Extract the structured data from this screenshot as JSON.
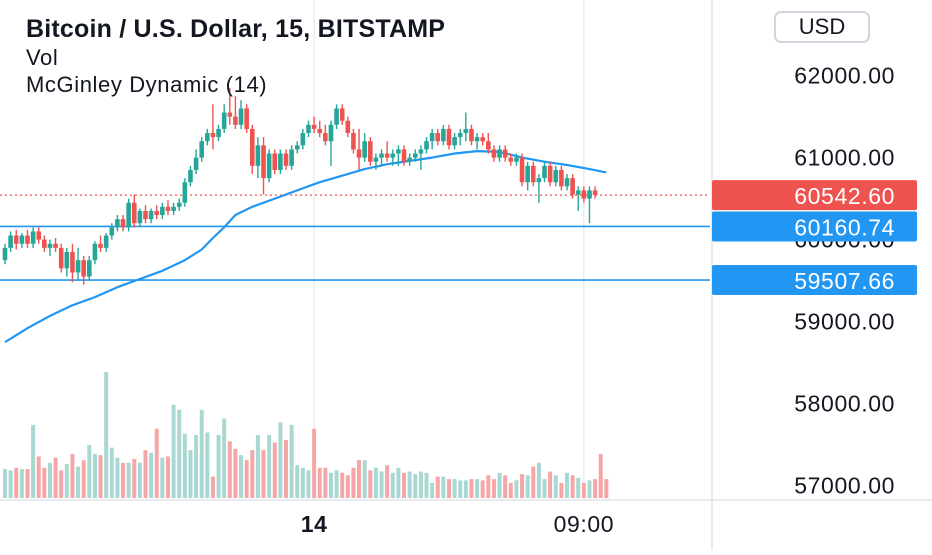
{
  "header": {
    "title": "Bitcoin / U.S. Dollar, 15, BITSTAMP",
    "indicator_vol": "Vol",
    "indicator_mcginley": "McGinley Dynamic (14)",
    "currency_button": "USD"
  },
  "colors": {
    "up": "#26a69a",
    "down": "#ef5350",
    "vol_up": "#a9d7d2",
    "vol_down": "#f4a7a6",
    "mcginley": "#2196f3",
    "hline": "#2196f3",
    "last_price_line": "#ef5350",
    "axis_text": "#131722",
    "grid": "#e0e3eb"
  },
  "chart_data": {
    "type": "candlestick",
    "symbol": "Bitcoin / U.S. Dollar",
    "interval": "15",
    "exchange": "BITSTAMP",
    "y_axis": {
      "ticks": [
        {
          "value": 62000,
          "label": "62000.00"
        },
        {
          "value": 61000,
          "label": "61000.00"
        },
        {
          "value": 60000,
          "label": "60000.00"
        },
        {
          "value": 59000,
          "label": "59000.00"
        },
        {
          "value": 58000,
          "label": "58000.00"
        },
        {
          "value": 57000,
          "label": "57000.00"
        }
      ],
      "range": [
        56850,
        62800
      ]
    },
    "x_axis": {
      "ticks": [
        {
          "index": 55,
          "label": "14"
        },
        {
          "index": 103,
          "label": "09:00"
        }
      ]
    },
    "last_price": {
      "value": 60542.6,
      "label": "60542.60"
    },
    "horizontal_lines": [
      {
        "value": 60160.74,
        "label": "60160.74"
      },
      {
        "value": 59507.66,
        "label": "59507.66"
      }
    ],
    "candles": [
      [
        59750,
        59950,
        59700,
        59900
      ],
      [
        59900,
        60100,
        59850,
        60050
      ],
      [
        60050,
        60120,
        59880,
        59950
      ],
      [
        59950,
        60080,
        59900,
        60050
      ],
      [
        60050,
        60120,
        59900,
        59950
      ],
      [
        59950,
        60150,
        59900,
        60100
      ],
      [
        60100,
        60150,
        59950,
        60000
      ],
      [
        60000,
        60050,
        59850,
        59900
      ],
      [
        59900,
        60000,
        59800,
        59950
      ],
      [
        59950,
        60020,
        59850,
        59900
      ],
      [
        59900,
        59950,
        59600,
        59650
      ],
      [
        59650,
        59900,
        59550,
        59850
      ],
      [
        59850,
        59950,
        59480,
        59600
      ],
      [
        59600,
        59900,
        59500,
        59750
      ],
      [
        59750,
        59800,
        59450,
        59550
      ],
      [
        59550,
        59800,
        59500,
        59750
      ],
      [
        59750,
        59980,
        59700,
        59950
      ],
      [
        59950,
        60050,
        59850,
        59900
      ],
      [
        59900,
        60080,
        59850,
        60050
      ],
      [
        60050,
        60200,
        60000,
        60150
      ],
      [
        60150,
        60300,
        60100,
        60250
      ],
      [
        60250,
        60300,
        60100,
        60150
      ],
      [
        60150,
        60500,
        60100,
        60450
      ],
      [
        60450,
        60550,
        60150,
        60200
      ],
      [
        60200,
        60380,
        60150,
        60350
      ],
      [
        60350,
        60420,
        60200,
        60250
      ],
      [
        60250,
        60380,
        60200,
        60350
      ],
      [
        60350,
        60420,
        60250,
        60300
      ],
      [
        60300,
        60450,
        60250,
        60400
      ],
      [
        60400,
        60480,
        60300,
        60350
      ],
      [
        60350,
        60450,
        60300,
        60400
      ],
      [
        60400,
        60500,
        60350,
        60450
      ],
      [
        60450,
        60750,
        60400,
        60700
      ],
      [
        60700,
        60900,
        60650,
        60850
      ],
      [
        60850,
        61100,
        60800,
        61000
      ],
      [
        61000,
        61250,
        60950,
        61200
      ],
      [
        61200,
        61350,
        61150,
        61300
      ],
      [
        61300,
        61650,
        61100,
        61250
      ],
      [
        61250,
        61400,
        61200,
        61350
      ],
      [
        61350,
        61650,
        61300,
        61550
      ],
      [
        61550,
        61850,
        61400,
        61500
      ],
      [
        61500,
        61750,
        61350,
        61400
      ],
      [
        61400,
        61700,
        61350,
        61600
      ],
      [
        61600,
        61650,
        61300,
        61350
      ],
      [
        61350,
        61400,
        60800,
        60900
      ],
      [
        60900,
        61250,
        60750,
        61150
      ],
      [
        61150,
        61250,
        60550,
        60750
      ],
      [
        60750,
        61100,
        60700,
        61050
      ],
      [
        61050,
        61100,
        60800,
        60850
      ],
      [
        60850,
        61100,
        60800,
        61050
      ],
      [
        61050,
        61100,
        60850,
        60900
      ],
      [
        60900,
        61150,
        60850,
        61100
      ],
      [
        61100,
        61200,
        61050,
        61150
      ],
      [
        61150,
        61350,
        61100,
        61300
      ],
      [
        61300,
        61450,
        61250,
        61400
      ],
      [
        61400,
        61500,
        61300,
        61350
      ],
      [
        61350,
        61450,
        61250,
        61300
      ],
      [
        61300,
        61400,
        61150,
        61200
      ],
      [
        61200,
        61450,
        60900,
        61400
      ],
      [
        61400,
        61650,
        61350,
        61600
      ],
      [
        61600,
        61650,
        61400,
        61450
      ],
      [
        61450,
        61500,
        61250,
        61300
      ],
      [
        61300,
        61350,
        61050,
        61100
      ],
      [
        61100,
        61350,
        60850,
        61000
      ],
      [
        61000,
        61300,
        60950,
        61200
      ],
      [
        61200,
        61250,
        60900,
        60950
      ],
      [
        60950,
        61050,
        60850,
        61000
      ],
      [
        61000,
        61100,
        60900,
        61050
      ],
      [
        61050,
        61200,
        60950,
        61000
      ],
      [
        61000,
        61100,
        60900,
        61050
      ],
      [
        61050,
        61150,
        60900,
        61100
      ],
      [
        61100,
        61150,
        60900,
        60950
      ],
      [
        60950,
        61050,
        60900,
        61000
      ],
      [
        61000,
        61100,
        60950,
        61050
      ],
      [
        61050,
        61150,
        60850,
        61100
      ],
      [
        61100,
        61250,
        61050,
        61200
      ],
      [
        61200,
        61350,
        61100,
        61300
      ],
      [
        61300,
        61350,
        61150,
        61200
      ],
      [
        61200,
        61400,
        61150,
        61350
      ],
      [
        61350,
        61400,
        61100,
        61150
      ],
      [
        61150,
        61300,
        61100,
        61250
      ],
      [
        61250,
        61350,
        61150,
        61300
      ],
      [
        61300,
        61550,
        61200,
        61350
      ],
      [
        61350,
        61400,
        61150,
        61200
      ],
      [
        61200,
        61300,
        61100,
        61250
      ],
      [
        61250,
        61300,
        61150,
        61200
      ],
      [
        61200,
        61300,
        61050,
        61100
      ],
      [
        61100,
        61150,
        60950,
        61000
      ],
      [
        61000,
        61150,
        60950,
        61100
      ],
      [
        61100,
        61150,
        60950,
        61000
      ],
      [
        61000,
        61050,
        60900,
        60950
      ],
      [
        60950,
        61050,
        60900,
        61000
      ],
      [
        61000,
        61050,
        60650,
        60700
      ],
      [
        60700,
        60950,
        60600,
        60900
      ],
      [
        60900,
        60950,
        60650,
        60700
      ],
      [
        60700,
        60800,
        60450,
        60750
      ],
      [
        60750,
        60950,
        60700,
        60900
      ],
      [
        60900,
        60950,
        60650,
        60700
      ],
      [
        60700,
        60900,
        60650,
        60850
      ],
      [
        60850,
        60900,
        60600,
        60650
      ],
      [
        60650,
        60800,
        60600,
        60750
      ],
      [
        60750,
        60800,
        60500,
        60550
      ],
      [
        60550,
        60650,
        60350,
        60600
      ],
      [
        60600,
        60650,
        60450,
        60500
      ],
      [
        60500,
        60650,
        60200,
        60600
      ],
      [
        60600,
        60650,
        60500,
        60542.6
      ]
    ],
    "volumes": [
      0.23,
      0.22,
      0.24,
      0.23,
      0.23,
      0.58,
      0.33,
      0.24,
      0.28,
      0.32,
      0.22,
      0.27,
      0.35,
      0.25,
      0.3,
      0.42,
      0.35,
      0.34,
      1.0,
      0.4,
      0.32,
      0.28,
      0.28,
      0.31,
      0.28,
      0.38,
      0.36,
      0.55,
      0.32,
      0.33,
      0.74,
      0.7,
      0.51,
      0.38,
      0.5,
      0.7,
      0.52,
      0.17,
      0.5,
      0.63,
      0.45,
      0.39,
      0.34,
      0.3,
      0.38,
      0.5,
      0.38,
      0.5,
      0.44,
      0.6,
      0.46,
      0.58,
      0.26,
      0.24,
      0.22,
      0.55,
      0.24,
      0.24,
      0.2,
      0.22,
      0.2,
      0.18,
      0.24,
      0.3,
      0.3,
      0.22,
      0.24,
      0.21,
      0.26,
      0.2,
      0.24,
      0.2,
      0.21,
      0.19,
      0.21,
      0.2,
      0.12,
      0.17,
      0.17,
      0.15,
      0.15,
      0.14,
      0.14,
      0.15,
      0.15,
      0.14,
      0.18,
      0.15,
      0.2,
      0.18,
      0.12,
      0.14,
      0.19,
      0.18,
      0.25,
      0.28,
      0.15,
      0.21,
      0.18,
      0.12,
      0.2,
      0.18,
      0.16,
      0.12,
      0.14,
      0.15,
      0.35,
      0.15
    ],
    "mcginley": [
      [
        0,
        58750
      ],
      [
        4,
        58920
      ],
      [
        8,
        59070
      ],
      [
        12,
        59200
      ],
      [
        16,
        59300
      ],
      [
        20,
        59420
      ],
      [
        24,
        59520
      ],
      [
        28,
        59620
      ],
      [
        32,
        59750
      ],
      [
        35,
        59880
      ],
      [
        37,
        60020
      ],
      [
        39,
        60150
      ],
      [
        41,
        60300
      ],
      [
        44,
        60400
      ],
      [
        48,
        60500
      ],
      [
        52,
        60600
      ],
      [
        56,
        60700
      ],
      [
        60,
        60780
      ],
      [
        64,
        60860
      ],
      [
        68,
        60920
      ],
      [
        72,
        60960
      ],
      [
        76,
        61000
      ],
      [
        80,
        61050
      ],
      [
        84,
        61080
      ],
      [
        88,
        61070
      ],
      [
        92,
        61000
      ],
      [
        96,
        60950
      ],
      [
        100,
        60910
      ],
      [
        104,
        60860
      ],
      [
        107,
        60820
      ]
    ]
  }
}
